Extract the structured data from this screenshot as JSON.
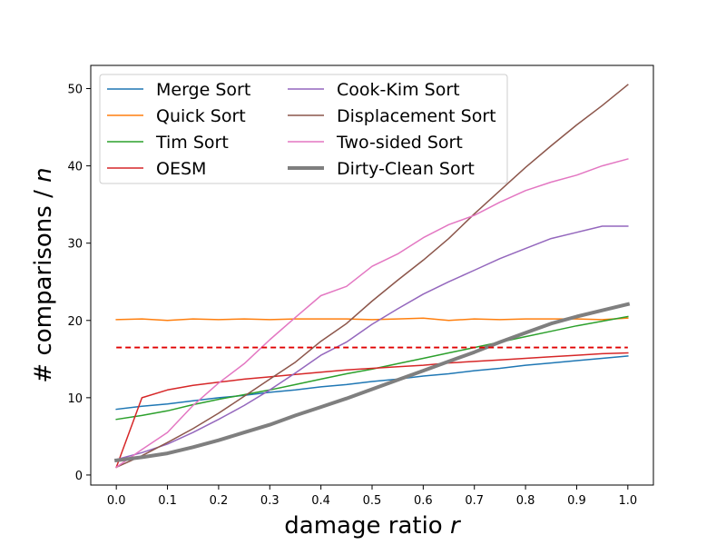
{
  "chart_data": {
    "type": "line",
    "xlabel": "damage ratio",
    "xlabel_var": "r",
    "ylabel": "# comparisons /",
    "ylabel_var": "n",
    "xlim": [
      -0.05,
      1.05
    ],
    "ylim": [
      -1.3,
      53
    ],
    "xticks": [
      0.0,
      0.1,
      0.2,
      0.3,
      0.4,
      0.5,
      0.6,
      0.7,
      0.8,
      0.9,
      1.0
    ],
    "xtick_labels": [
      "0.0",
      "0.1",
      "0.2",
      "0.3",
      "0.4",
      "0.5",
      "0.6",
      "0.7",
      "0.8",
      "0.9",
      "1.0"
    ],
    "yticks": [
      0,
      10,
      20,
      30,
      40,
      50
    ],
    "ytick_labels": [
      "0",
      "10",
      "20",
      "30",
      "40",
      "50"
    ],
    "grid": false,
    "legend_position": "upper-left",
    "legend_columns": 2,
    "x": [
      0.0,
      0.05,
      0.1,
      0.15,
      0.2,
      0.25,
      0.3,
      0.35,
      0.4,
      0.45,
      0.5,
      0.55,
      0.6,
      0.65,
      0.7,
      0.75,
      0.8,
      0.85,
      0.9,
      0.95,
      1.0
    ],
    "series": [
      {
        "name": "Merge Sort",
        "color": "#1f77b4",
        "width": 1.5,
        "values": [
          8.5,
          8.9,
          9.2,
          9.6,
          10.0,
          10.3,
          10.7,
          11.0,
          11.4,
          11.7,
          12.1,
          12.4,
          12.8,
          13.1,
          13.5,
          13.8,
          14.2,
          14.5,
          14.8,
          15.1,
          15.4
        ]
      },
      {
        "name": "Quick Sort",
        "color": "#ff7f0e",
        "width": 1.5,
        "values": [
          20.1,
          20.2,
          20.0,
          20.2,
          20.1,
          20.2,
          20.1,
          20.2,
          20.2,
          20.2,
          20.1,
          20.2,
          20.3,
          20.0,
          20.2,
          20.1,
          20.2,
          20.2,
          20.2,
          20.1,
          20.3
        ]
      },
      {
        "name": "Tim Sort",
        "color": "#2ca02c",
        "width": 1.5,
        "values": [
          7.2,
          7.7,
          8.3,
          9.1,
          9.8,
          10.4,
          11.0,
          11.7,
          12.4,
          13.1,
          13.7,
          14.4,
          15.1,
          15.8,
          16.5,
          17.2,
          17.9,
          18.6,
          19.3,
          19.9,
          20.5
        ]
      },
      {
        "name": "OESM",
        "color": "#d62728",
        "width": 1.5,
        "values": [
          1.0,
          10.0,
          11.0,
          11.6,
          12.0,
          12.4,
          12.7,
          13.0,
          13.3,
          13.6,
          13.8,
          14.0,
          14.2,
          14.5,
          14.7,
          14.9,
          15.1,
          15.3,
          15.5,
          15.7,
          15.8
        ]
      },
      {
        "name": "Cook-Kim Sort",
        "color": "#9467bd",
        "width": 1.5,
        "values": [
          2.0,
          2.9,
          4.0,
          5.5,
          7.2,
          9.0,
          11.0,
          13.2,
          15.5,
          17.2,
          19.5,
          21.5,
          23.4,
          25.0,
          26.5,
          28.0,
          29.3,
          30.6,
          31.4,
          32.2,
          32.2
        ]
      },
      {
        "name": "Displacement Sort",
        "color": "#8c564b",
        "width": 1.5,
        "values": [
          1.0,
          2.5,
          4.2,
          6.0,
          8.0,
          10.2,
          12.4,
          14.6,
          17.3,
          19.6,
          22.5,
          25.2,
          27.8,
          30.6,
          33.8,
          36.8,
          39.8,
          42.6,
          45.3,
          47.8,
          50.5
        ]
      },
      {
        "name": "Two-sided Sort",
        "color": "#e377c2",
        "width": 1.5,
        "values": [
          1.0,
          3.3,
          5.5,
          9.0,
          11.9,
          14.4,
          17.5,
          20.4,
          23.2,
          24.4,
          27.0,
          28.6,
          30.7,
          32.4,
          33.6,
          35.3,
          36.8,
          37.9,
          38.8,
          40.0,
          40.9
        ]
      },
      {
        "name": "Dirty-Clean Sort",
        "color": "#7f7f7f",
        "width": 4,
        "values": [
          1.9,
          2.3,
          2.8,
          3.6,
          4.5,
          5.5,
          6.5,
          7.7,
          8.8,
          9.9,
          11.1,
          12.3,
          13.5,
          14.7,
          15.9,
          17.2,
          18.4,
          19.6,
          20.5,
          21.3,
          22.1
        ]
      }
    ],
    "reference_line": {
      "y": 16.5,
      "color": "#e00000",
      "style": "dashed"
    }
  }
}
